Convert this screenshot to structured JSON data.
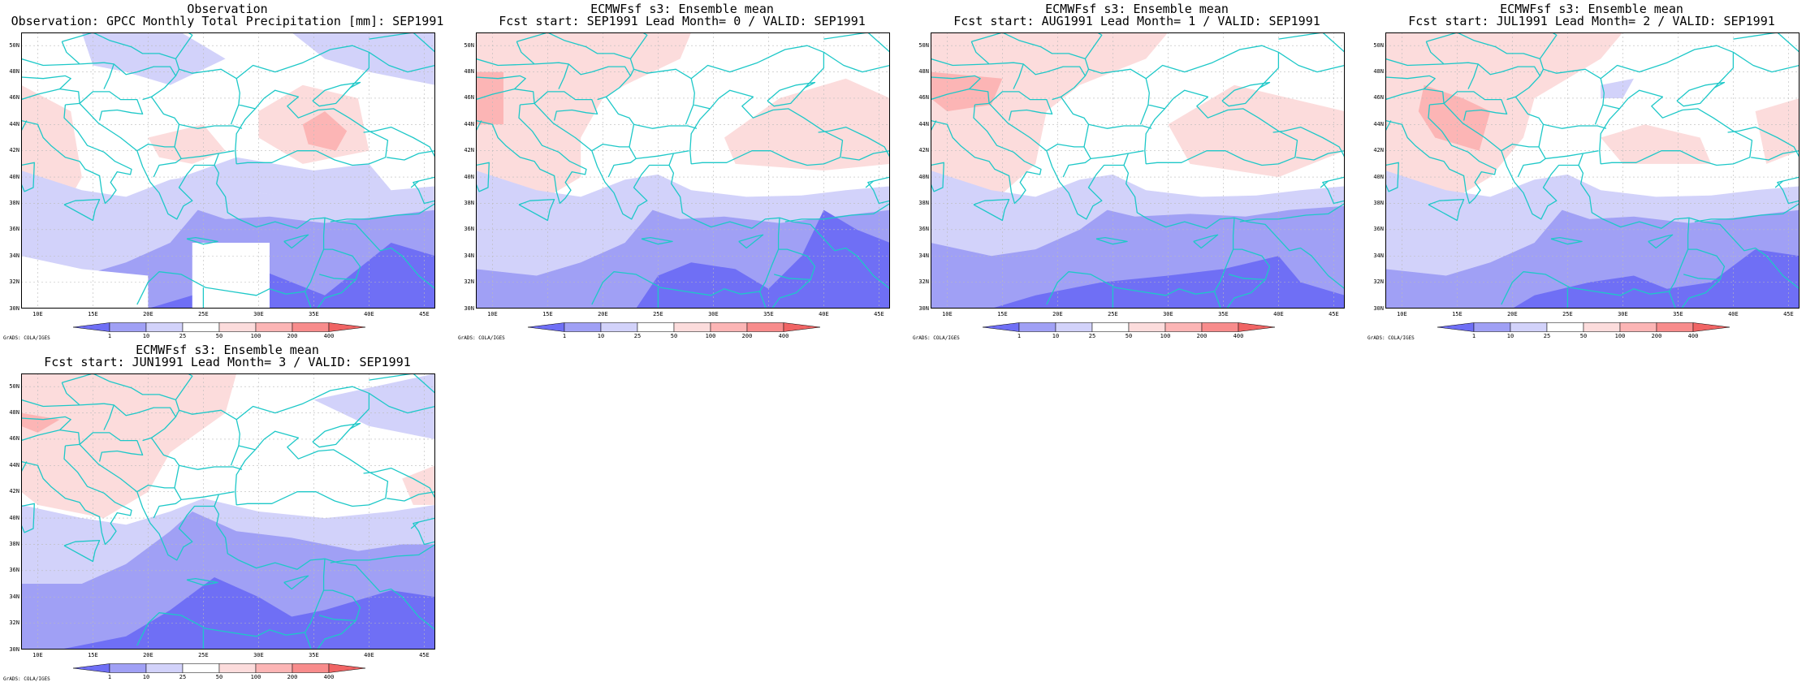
{
  "panels": [
    {
      "title1": "Observation",
      "title2": "Observation: GPCC Monthly Total Precipitation [mm]: SEP1991",
      "variant": 0
    },
    {
      "title1": "ECMWFsf s3: Ensemble mean",
      "title2": "Fcst start: SEP1991  Lead Month= 0 / VALID: SEP1991",
      "variant": 1
    },
    {
      "title1": "ECMWFsf s3: Ensemble mean",
      "title2": "Fcst start: AUG1991  Lead Month= 1 / VALID: SEP1991",
      "variant": 2
    },
    {
      "title1": "ECMWFsf s3: Ensemble mean",
      "title2": "Fcst start: JUL1991  Lead Month= 2 / VALID: SEP1991",
      "variant": 3
    },
    {
      "title1": "ECMWFsf s3: Ensemble mean",
      "title2": "Fcst start: JUN1991  Lead Month= 3 / VALID: SEP1991",
      "variant": 4
    }
  ],
  "axes": {
    "lat_labels": [
      "30N",
      "32N",
      "34N",
      "36N",
      "38N",
      "40N",
      "42N",
      "44N",
      "46N",
      "48N",
      "50N"
    ],
    "lon_labels": [
      "10E",
      "15E",
      "20E",
      "25E",
      "30E",
      "35E",
      "40E",
      "45E"
    ],
    "lat_range": [
      30,
      51
    ],
    "lon_range": [
      8.5,
      46
    ]
  },
  "colorbar": {
    "labels": [
      "1",
      "10",
      "25",
      "50",
      "100",
      "200",
      "400"
    ],
    "colors": [
      "#6f6ff5",
      "#a0a0f5",
      "#d2d2fa",
      "#ffffff",
      "#fcdcdc",
      "#fcb5b5",
      "#f88c8c",
      "#f06464"
    ]
  },
  "credit": "GrADS: COLA/IGES",
  "colors": {
    "coast": "#1ec8c8",
    "grid": "#bbbbbb"
  }
}
